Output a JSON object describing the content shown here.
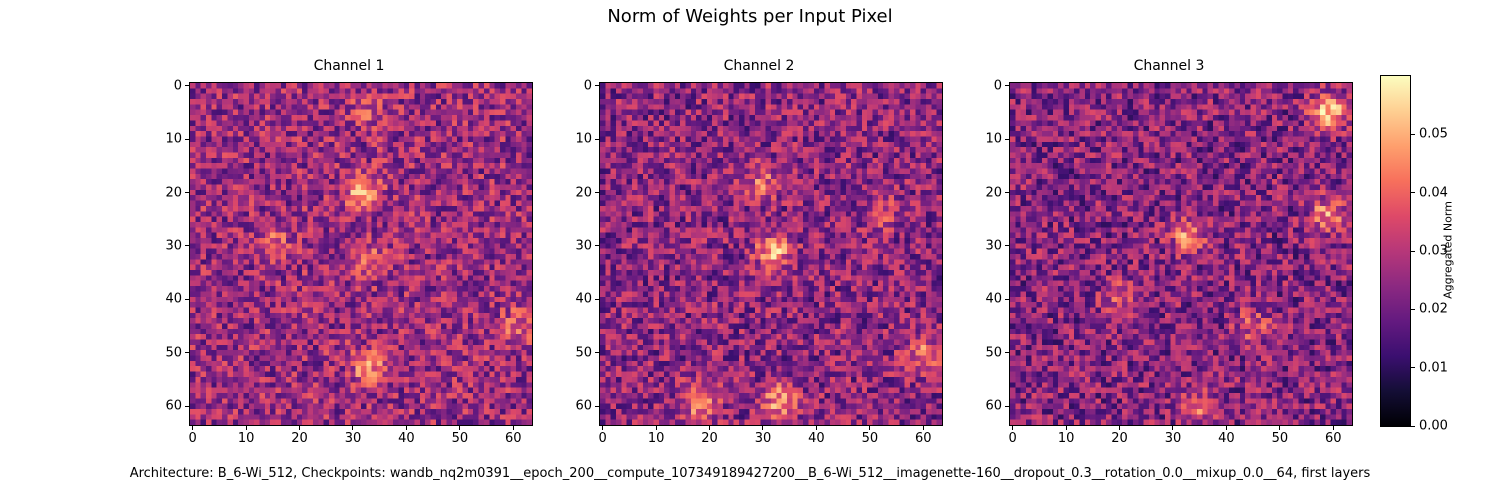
{
  "figure": {
    "suptitle": "Norm of Weights per Input Pixel",
    "footer": "Architecture: B_6-Wi_512, Checkpoints: wandb_nq2m0391__epoch_200__compute_107349189427200__B_6-Wi_512__imagenette-160__dropout_0.3__rotation_0.0__mixup_0.0__64, first layers",
    "colormap": "magma"
  },
  "chart_data": [
    {
      "type": "heatmap",
      "title": "Channel 1",
      "grid_size": [
        64,
        64
      ],
      "x_ticks": [
        0,
        10,
        20,
        30,
        40,
        50,
        60
      ],
      "y_ticks": [
        0,
        10,
        20,
        30,
        40,
        50,
        60
      ],
      "xlim": [
        -0.5,
        63.5
      ],
      "ylim": [
        63.5,
        -0.5
      ],
      "value_range": [
        0.0,
        0.06
      ],
      "background_mean": 0.026,
      "hotspots": [
        {
          "x": 32,
          "y": 20,
          "value": 0.052
        },
        {
          "x": 33,
          "y": 53,
          "value": 0.045
        },
        {
          "x": 33,
          "y": 33,
          "value": 0.04
        },
        {
          "x": 15,
          "y": 29,
          "value": 0.037
        },
        {
          "x": 61,
          "y": 45,
          "value": 0.04
        },
        {
          "x": 33,
          "y": 4,
          "value": 0.036
        }
      ]
    },
    {
      "type": "heatmap",
      "title": "Channel 2",
      "grid_size": [
        64,
        64
      ],
      "x_ticks": [
        0,
        10,
        20,
        30,
        40,
        50,
        60
      ],
      "y_ticks": [
        0,
        10,
        20,
        30,
        40,
        50,
        60
      ],
      "xlim": [
        -0.5,
        63.5
      ],
      "ylim": [
        63.5,
        -0.5
      ],
      "value_range": [
        0.0,
        0.06
      ],
      "background_mean": 0.024,
      "hotspots": [
        {
          "x": 32,
          "y": 31,
          "value": 0.05
        },
        {
          "x": 30,
          "y": 18,
          "value": 0.04
        },
        {
          "x": 18,
          "y": 59,
          "value": 0.048
        },
        {
          "x": 33,
          "y": 59,
          "value": 0.046
        },
        {
          "x": 60,
          "y": 50,
          "value": 0.044
        },
        {
          "x": 52,
          "y": 24,
          "value": 0.036
        }
      ]
    },
    {
      "type": "heatmap",
      "title": "Channel 3",
      "grid_size": [
        64,
        64
      ],
      "x_ticks": [
        0,
        10,
        20,
        30,
        40,
        50,
        60
      ],
      "y_ticks": [
        0,
        10,
        20,
        30,
        40,
        50,
        60
      ],
      "xlim": [
        -0.5,
        63.5
      ],
      "ylim": [
        63.5,
        -0.5
      ],
      "value_range": [
        0.0,
        0.06
      ],
      "background_mean": 0.023,
      "hotspots": [
        {
          "x": 33,
          "y": 28,
          "value": 0.045
        },
        {
          "x": 59,
          "y": 5,
          "value": 0.055
        },
        {
          "x": 59,
          "y": 24,
          "value": 0.045
        },
        {
          "x": 20,
          "y": 40,
          "value": 0.038
        },
        {
          "x": 45,
          "y": 45,
          "value": 0.036
        },
        {
          "x": 35,
          "y": 60,
          "value": 0.038
        }
      ]
    }
  ],
  "colorbar": {
    "label": "Aggregated Norm",
    "ticks": [
      "0.00",
      "0.01",
      "0.02",
      "0.03",
      "0.04",
      "0.05"
    ],
    "range": [
      0.0,
      0.06
    ]
  }
}
